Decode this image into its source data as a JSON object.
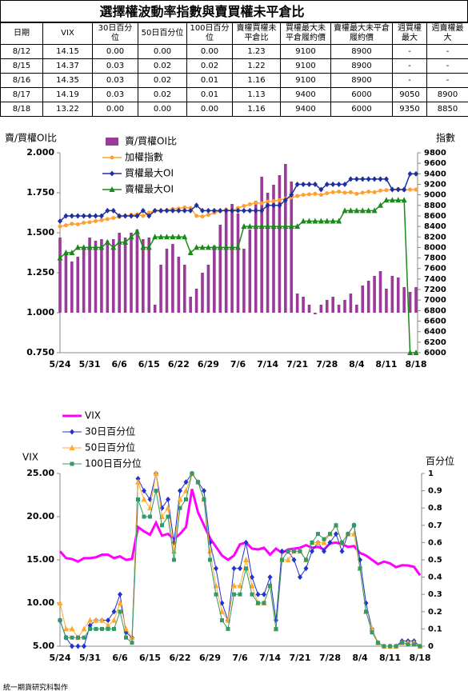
{
  "table": {
    "title": "選擇權波動率指數與賣買權未平倉比",
    "header": [
      "日期",
      "VIX",
      "30日百分位",
      "50日百分位",
      "100日百分位",
      "賣權買權未平倉比",
      "買權最大未平倉履約價",
      "賣權最大未平倉履約價",
      "週買權最大",
      "週賣權最大"
    ],
    "rows": [
      [
        "8/12",
        "14.15",
        "0.00",
        "0.00",
        "0.00",
        "1.23",
        "9100",
        "8900",
        "-",
        "-"
      ],
      [
        "8/15",
        "14.37",
        "0.03",
        "0.02",
        "0.02",
        "1.22",
        "9100",
        "8900",
        "-",
        "-"
      ],
      [
        "8/16",
        "14.35",
        "0.03",
        "0.02",
        "0.01",
        "1.16",
        "9100",
        "8900",
        "-",
        "-"
      ],
      [
        "8/17",
        "14.19",
        "0.03",
        "0.02",
        "0.01",
        "1.13",
        "9400",
        "6000",
        "9050",
        "8900"
      ],
      [
        "8/18",
        "13.22",
        "0.00",
        "0.00",
        "0.00",
        "1.16",
        "9400",
        "6000",
        "9350",
        "8850"
      ]
    ]
  },
  "chart_data": [
    {
      "type": "bar",
      "y_label": "賣/買權OI比",
      "y2_label": "指數",
      "legend": "top",
      "categories": [
        "5/24",
        null,
        null,
        null,
        null,
        "5/31",
        null,
        null,
        null,
        null,
        "6/6",
        null,
        null,
        null,
        null,
        "6/15",
        null,
        null,
        null,
        null,
        "6/22",
        null,
        null,
        null,
        null,
        "6/29",
        null,
        null,
        null,
        null,
        "7/6",
        null,
        null,
        null,
        null,
        "7/14",
        null,
        null,
        null,
        null,
        "7/21",
        null,
        null,
        null,
        null,
        "7/28",
        null,
        null,
        null,
        null,
        "8/4",
        null,
        null,
        null,
        null,
        "8/11",
        null,
        null,
        null,
        null,
        "8/18"
      ],
      "ylim": [
        0.75,
        2.0
      ],
      "yticks": [
        {
          "value": 0.75,
          "label": "0.750"
        },
        {
          "value": 1.0,
          "label": "1.000"
        },
        {
          "value": 1.25,
          "label": "1.250"
        },
        {
          "value": 1.5,
          "label": "1.500"
        },
        {
          "value": 1.75,
          "label": "1.750"
        },
        {
          "value": 2.0,
          "label": "2.000"
        }
      ],
      "y2lim": [
        6000,
        9800
      ],
      "y2ticks": [
        6000,
        6200,
        6400,
        6600,
        6800,
        7000,
        7200,
        7400,
        7600,
        7800,
        8000,
        8200,
        8400,
        8600,
        8800,
        9000,
        9200,
        9400,
        9600,
        9800
      ],
      "series": [
        {
          "name": "賣/買權OI比",
          "type": "bar",
          "color": "#9b3a9b",
          "values": [
            1.47,
            1.36,
            1.32,
            1.35,
            1.4,
            1.47,
            1.45,
            1.46,
            1.45,
            1.46,
            1.5,
            1.47,
            1.5,
            1.52,
            1.46,
            1.47,
            1.05,
            1.3,
            1.4,
            1.43,
            1.35,
            1.3,
            1.1,
            1.15,
            1.25,
            1.3,
            1.42,
            1.55,
            1.65,
            1.68,
            1.62,
            1.4,
            1.52,
            1.7,
            1.85,
            1.75,
            1.8,
            1.86,
            1.93,
            1.82,
            1.12,
            1.1,
            1.05,
            0.99,
            1.05,
            1.08,
            1.1,
            1.05,
            1.08,
            1.12,
            1.05,
            1.17,
            1.2,
            1.23,
            1.26,
            1.15,
            1.23,
            1.22,
            1.16,
            1.13,
            1.16
          ]
        },
        {
          "name": "加權指數",
          "type": "line",
          "axis": "y2",
          "marker": "circle",
          "color": "#ffa030",
          "values": [
            8400,
            8420,
            8450,
            8440,
            8470,
            8480,
            8500,
            8520,
            8540,
            8560,
            8580,
            8600,
            8620,
            8630,
            8600,
            8660,
            8700,
            8690,
            8710,
            8730,
            8740,
            8760,
            8750,
            8600,
            8590,
            8620,
            8660,
            8690,
            8720,
            8700,
            8750,
            8790,
            8820,
            8850,
            8840,
            8870,
            8880,
            8900,
            8930,
            8950,
            8980,
            9000,
            9010,
            9020,
            9000,
            9030,
            9050,
            9060,
            9040,
            9050,
            9020,
            9040,
            9060,
            9050,
            9080,
            9090,
            9100,
            9110,
            9090,
            9100,
            9100
          ]
        },
        {
          "name": "買權最大OI",
          "type": "line",
          "axis": "y2",
          "marker": "diamond",
          "color": "#1f2f9f",
          "values": [
            8500,
            8600,
            8600,
            8600,
            8600,
            8600,
            8600,
            8600,
            8700,
            8700,
            8600,
            8600,
            8600,
            8600,
            8700,
            8600,
            8700,
            8700,
            8700,
            8700,
            8700,
            8700,
            8700,
            8800,
            8700,
            8700,
            8700,
            8700,
            8700,
            8700,
            8700,
            8700,
            8700,
            8700,
            8700,
            8800,
            8800,
            8800,
            8900,
            9000,
            9200,
            9200,
            9200,
            9200,
            9100,
            9200,
            9200,
            9200,
            9200,
            9300,
            9300,
            9300,
            9300,
            9300,
            9300,
            9300,
            9100,
            9100,
            9100,
            9400,
            9400
          ]
        },
        {
          "name": "賣權最大OI",
          "type": "line",
          "axis": "y2",
          "marker": "triangle",
          "color": "#1a8a1a",
          "values": [
            7800,
            7900,
            7900,
            8000,
            8000,
            8000,
            8000,
            8000,
            8100,
            8000,
            8100,
            8100,
            8200,
            8300,
            8000,
            8000,
            8200,
            8200,
            8200,
            8200,
            8200,
            8200,
            7900,
            8000,
            8000,
            8000,
            8000,
            8000,
            8000,
            8000,
            8000,
            8400,
            8400,
            8400,
            8400,
            8400,
            8400,
            8400,
            8400,
            8400,
            8400,
            8500,
            8500,
            8500,
            8500,
            8500,
            8500,
            8500,
            8700,
            8700,
            8700,
            8700,
            8700,
            8700,
            8800,
            8900,
            8900,
            8900,
            8900,
            6000,
            6000
          ]
        }
      ]
    },
    {
      "type": "line",
      "y_label": "VIX",
      "y2_label": "百分位",
      "legend": "top-left",
      "categories": [
        "5/24",
        null,
        null,
        null,
        null,
        "5/31",
        null,
        null,
        null,
        null,
        "6/6",
        null,
        null,
        null,
        null,
        "6/15",
        null,
        null,
        null,
        null,
        "6/22",
        null,
        null,
        null,
        null,
        "6/29",
        null,
        null,
        null,
        null,
        "7/6",
        null,
        null,
        null,
        null,
        "7/14",
        null,
        null,
        null,
        null,
        "7/21",
        null,
        null,
        null,
        null,
        "7/28",
        null,
        null,
        null,
        null,
        "8/4",
        null,
        null,
        null,
        null,
        "8/11",
        null,
        null,
        null,
        null,
        "8/18"
      ],
      "ylim": [
        5,
        25
      ],
      "yticks": [
        {
          "value": 5,
          "label": "5.00"
        },
        {
          "value": 10,
          "label": "10.00"
        },
        {
          "value": 15,
          "label": "15.00"
        },
        {
          "value": 20,
          "label": "20.00"
        },
        {
          "value": 25,
          "label": "25.00"
        }
      ],
      "y2lim": [
        0,
        1
      ],
      "y2ticks": [
        0,
        0.1,
        0.2,
        0.3,
        0.4,
        0.5,
        0.6,
        0.7,
        0.8,
        0.9,
        1
      ],
      "series": [
        {
          "name": "VIX",
          "color": "#ff00ff",
          "width": 3,
          "values": [
            16.0,
            15.2,
            15.1,
            14.8,
            15.2,
            15.2,
            15.3,
            15.6,
            15.6,
            15.2,
            15.4,
            15.0,
            15.1,
            18.8,
            18.3,
            17.9,
            19.3,
            17.8,
            18.0,
            17.4,
            18.0,
            18.8,
            23.2,
            20.5,
            19.0,
            17.5,
            16.5,
            15.5,
            15.0,
            15.5,
            16.8,
            17.0,
            16.3,
            16.2,
            16.4,
            15.6,
            16.3,
            15.8,
            16.2,
            16.3,
            16.4,
            16.7,
            16.4,
            16.5,
            16.2,
            16.9,
            17.0,
            16.8,
            16.5,
            16.6,
            15.8,
            15.5,
            15.0,
            14.5,
            14.8,
            14.6,
            14.15,
            14.37,
            14.35,
            14.19,
            13.22
          ]
        },
        {
          "name": "30日百分位",
          "axis": "y2",
          "marker": "diamond",
          "color": "#2233cc",
          "width": 1,
          "values": [
            0.15,
            0.05,
            0,
            0,
            0,
            0.12,
            0.15,
            0.15,
            0.15,
            0.2,
            0.3,
            0.08,
            0.05,
            0.97,
            0.9,
            0.85,
            1.0,
            0.8,
            0.85,
            0.6,
            0.9,
            0.95,
            1.0,
            0.95,
            0.9,
            0.6,
            0.45,
            0.25,
            0.15,
            0.45,
            0.45,
            0.6,
            0.4,
            0.3,
            0.3,
            0.4,
            0.15,
            0.55,
            0.55,
            0.5,
            0.4,
            0.45,
            0.55,
            0.6,
            0.55,
            0.6,
            0.65,
            0.55,
            0.65,
            0.7,
            0.5,
            0.25,
            0.1,
            0.02,
            0,
            0,
            0,
            0.03,
            0.03,
            0.03,
            0
          ]
        },
        {
          "name": "50日百分位",
          "axis": "y2",
          "marker": "triangle",
          "color": "#ffaa33",
          "width": 1,
          "values": [
            0.25,
            0.1,
            0.1,
            0.05,
            0.1,
            0.15,
            0.15,
            0.15,
            0.12,
            0.15,
            0.25,
            0.1,
            0.05,
            0.95,
            0.85,
            0.8,
            1.0,
            0.75,
            0.8,
            0.55,
            0.85,
            0.9,
            1.0,
            0.95,
            0.85,
            0.55,
            0.35,
            0.2,
            0.15,
            0.35,
            0.35,
            0.5,
            0.35,
            0.25,
            0.25,
            0.35,
            0.1,
            0.5,
            0.5,
            0.55,
            0.55,
            0.5,
            0.6,
            0.6,
            0.6,
            0.65,
            0.7,
            0.6,
            0.65,
            0.65,
            0.45,
            0.2,
            0.1,
            0.02,
            0,
            0,
            0,
            0.02,
            0.02,
            0.02,
            0
          ]
        },
        {
          "name": "100日百分位",
          "axis": "y2",
          "marker": "square",
          "color": "#339966",
          "width": 1,
          "values": [
            0.15,
            0.05,
            0.05,
            0.05,
            0.05,
            0.1,
            0.1,
            0.1,
            0.1,
            0.1,
            0.2,
            0.05,
            0.02,
            0.85,
            0.75,
            0.75,
            0.9,
            0.7,
            0.75,
            0.5,
            0.8,
            0.85,
            1.0,
            0.95,
            0.85,
            0.5,
            0.3,
            0.15,
            0.1,
            0.3,
            0.3,
            0.45,
            0.3,
            0.25,
            0.25,
            0.35,
            0.1,
            0.5,
            0.55,
            0.55,
            0.55,
            0.5,
            0.6,
            0.65,
            0.62,
            0.65,
            0.7,
            0.6,
            0.65,
            0.7,
            0.45,
            0.2,
            0.08,
            0.02,
            0,
            0,
            0,
            0.02,
            0.01,
            0.01,
            0
          ]
        }
      ]
    }
  ],
  "footer": "統一期貨研究科製作"
}
